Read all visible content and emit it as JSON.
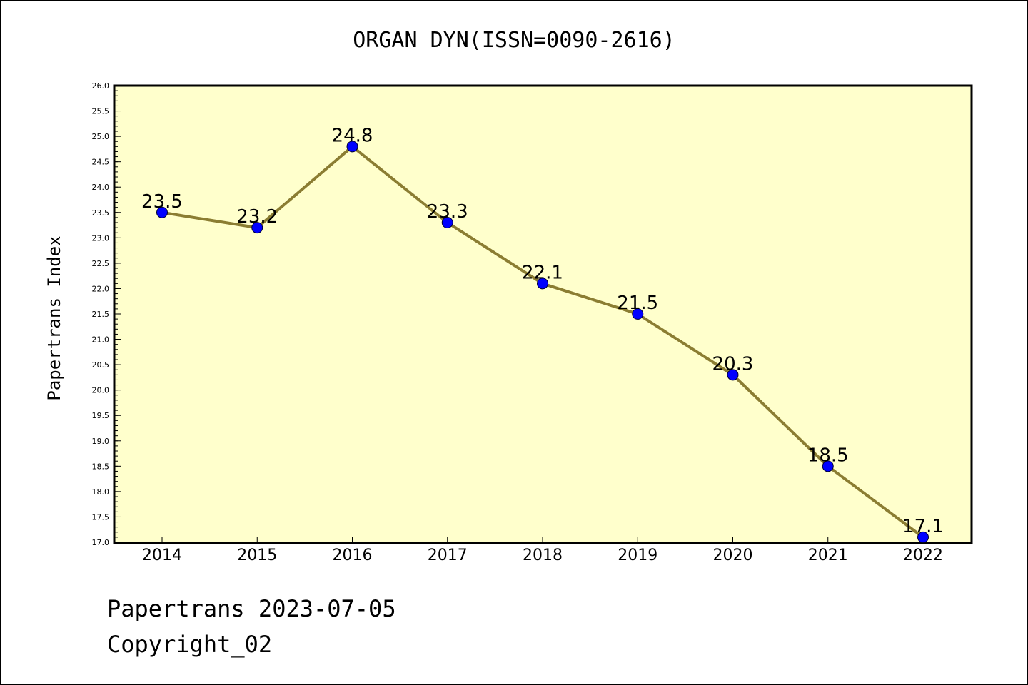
{
  "colors": {
    "plot_background": "#ffffcc",
    "line": "#8b7d32",
    "marker": "#0000ff",
    "axis": "#000000"
  },
  "footer": {
    "date_line": "Papertrans 2023-07-05",
    "copyright": "Copyright_02"
  },
  "chart_data": {
    "type": "line",
    "title": "ORGAN DYN(ISSN=0090-2616)",
    "xlabel": "",
    "ylabel": "Papertrans Index",
    "categories": [
      "2014",
      "2015",
      "2016",
      "2017",
      "2018",
      "2019",
      "2020",
      "2021",
      "2022"
    ],
    "series": [
      {
        "values": [
          23.5,
          23.2,
          24.8,
          23.3,
          22.1,
          21.5,
          20.3,
          18.5,
          17.1
        ],
        "data_labels": [
          "23.5",
          "23.2",
          "24.8",
          "23.3",
          "22.1",
          "21.5",
          "20.3",
          "18.5",
          "17.1"
        ]
      }
    ],
    "ylim": [
      17.0,
      26.0
    ],
    "y_ticks": [
      "17.0",
      "17.5",
      "18.0",
      "18.5",
      "19.0",
      "19.5",
      "20.0",
      "20.5",
      "21.0",
      "21.5",
      "22.0",
      "22.5",
      "23.0",
      "23.5",
      "24.0",
      "24.5",
      "25.0",
      "25.5",
      "26.0"
    ],
    "grid": false,
    "legend": "none"
  }
}
